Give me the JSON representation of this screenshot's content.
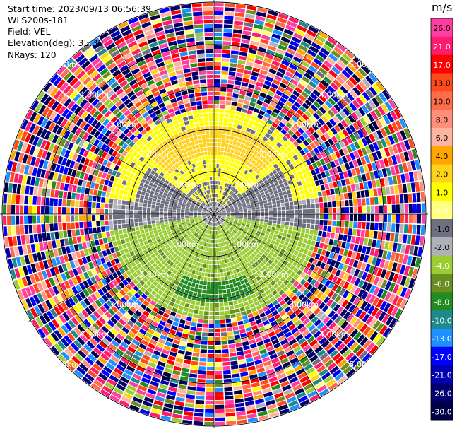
{
  "info": {
    "start_time": "Start time: 2023/09/13 06:56:39",
    "station": "WLS200s-181",
    "field": "Field: VEL",
    "elevation": "Elevation(deg): 35.30",
    "nrays": "NRays: 120"
  },
  "chart_data": {
    "type": "heatmap",
    "projection": "polar-ppi",
    "field": "VEL",
    "units": "m/s",
    "n_rays": 120,
    "range_ring_labels": [
      "1.00km",
      "2.00km",
      "3.00km",
      "4.00km",
      "5.00km"
    ],
    "colorbar": {
      "title": "m/s",
      "tick_labels": [
        "26.0",
        "21.0",
        "17.0",
        "13.0",
        "10.0",
        "8.0",
        "6.0",
        "4.0",
        "2.0",
        "1.0",
        "0.0",
        "-1.0",
        "-2.0",
        "-4.0",
        "-6.0",
        "-8.0",
        "-10.0",
        "-13.0",
        "-17.0",
        "-21.0",
        "-26.0",
        "-30.0"
      ],
      "bins": [
        {
          "lo": 26,
          "hi": 30,
          "color": "#ff3fa0"
        },
        {
          "lo": 21,
          "hi": 26,
          "color": "#ff1c6e"
        },
        {
          "lo": 17,
          "hi": 21,
          "color": "#ff0000"
        },
        {
          "lo": 13,
          "hi": 17,
          "color": "#ff4a1c"
        },
        {
          "lo": 10,
          "hi": 13,
          "color": "#ff6c4c"
        },
        {
          "lo": 8,
          "hi": 10,
          "color": "#ff8f7a"
        },
        {
          "lo": 6,
          "hi": 8,
          "color": "#ffb4a0"
        },
        {
          "lo": 4,
          "hi": 6,
          "color": "#ffa500"
        },
        {
          "lo": 2,
          "hi": 4,
          "color": "#ffd21c"
        },
        {
          "lo": 1,
          "hi": 2,
          "color": "#ffff00"
        },
        {
          "lo": 0,
          "hi": 1,
          "color": "#ffff80"
        },
        {
          "lo": -1,
          "hi": 0,
          "color": "#6e7080"
        },
        {
          "lo": -2,
          "hi": -1,
          "color": "#b0b0b8"
        },
        {
          "lo": -4,
          "hi": -2,
          "color": "#9acd32"
        },
        {
          "lo": -6,
          "hi": -4,
          "color": "#6b8e23"
        },
        {
          "lo": -8,
          "hi": -6,
          "color": "#228b22"
        },
        {
          "lo": -10,
          "hi": -8,
          "color": "#1e8a8a"
        },
        {
          "lo": -13,
          "hi": -10,
          "color": "#1e90ff"
        },
        {
          "lo": -17,
          "hi": -13,
          "color": "#0000ff"
        },
        {
          "lo": -21,
          "hi": -17,
          "color": "#0000b4"
        },
        {
          "lo": -26,
          "hi": -21,
          "color": "#00006e"
        },
        {
          "lo": -30,
          "hi": -26,
          "color": "#000046"
        }
      ]
    },
    "field_structure": [
      {
        "range_km": [
          0.0,
          1.0
        ],
        "pattern": "north half grey (~-1 m/s), south half light green (~-2 m/s)"
      },
      {
        "range_km": [
          1.0,
          2.5
        ],
        "pattern": "north: yellow (~1 to 2 m/s) with orange core (~2 to 4 m/s); south: light green (~-2 m/s) with dark green band (~-6 m/s); east and west sides grey (~-1 m/s)"
      },
      {
        "range_km": [
          2.5,
          6.0
        ],
        "pattern": "noise: random colours spanning the full scale"
      }
    ]
  }
}
